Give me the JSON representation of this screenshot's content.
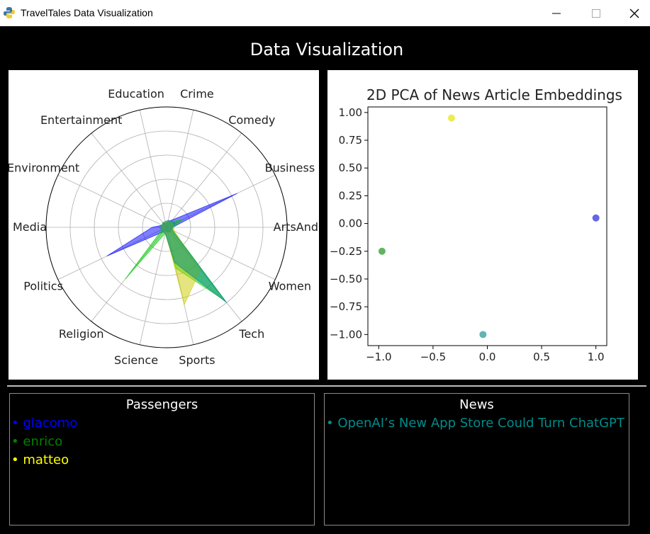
{
  "window": {
    "title": "TravelTales Data Visualization"
  },
  "header": {
    "title": "Data Visualization"
  },
  "chart_data": [
    {
      "type": "radar",
      "categories": [
        "ArtsAndCu",
        "Business",
        "Comedy",
        "Crime",
        "Education",
        "Entertainment",
        "Environment",
        "Media",
        "Politics",
        "Religion",
        "Science",
        "Sports",
        "Tech",
        "Women"
      ],
      "rmax": 1,
      "grid": true,
      "series": [
        {
          "color": "#0000ff",
          "values": [
            0.05,
            0.65,
            0.08,
            0.05,
            0.03,
            0.04,
            0.04,
            0.12,
            0.55,
            0.05,
            0.03,
            0.04,
            0.05,
            0.04
          ]
        },
        {
          "color": "#00cc00",
          "values": [
            0.05,
            0.15,
            0.06,
            0.05,
            0.04,
            0.05,
            0.04,
            0.05,
            0.04,
            0.55,
            0.05,
            0.35,
            0.78,
            0.06
          ]
        },
        {
          "color": "#cccc00",
          "values": [
            0.06,
            0.06,
            0.06,
            0.05,
            0.04,
            0.05,
            0.04,
            0.05,
            0.04,
            0.05,
            0.04,
            0.66,
            0.45,
            0.07
          ]
        },
        {
          "color": "#008b8b",
          "values": [
            0.05,
            0.08,
            0.06,
            0.06,
            0.05,
            0.05,
            0.04,
            0.06,
            0.04,
            0.05,
            0.05,
            0.3,
            0.8,
            0.05
          ]
        }
      ]
    },
    {
      "type": "scatter",
      "title": "2D PCA of News Article Embeddings",
      "xlim": [
        -1.1,
        1.1
      ],
      "ylim": [
        -1.1,
        1.05
      ],
      "xticks": [
        "−1.0",
        "−0.5",
        "0.0",
        "0.5",
        "1.0"
      ],
      "yticks": [
        "1.00",
        "0.75",
        "0.50",
        "0.25",
        "0.00",
        "−0.25",
        "−0.50",
        "−0.75",
        "−1.00"
      ],
      "points": [
        {
          "x": -0.33,
          "y": 0.95,
          "color": "#e6e619"
        },
        {
          "x": 1.0,
          "y": 0.05,
          "color": "#3333dd"
        },
        {
          "x": -0.97,
          "y": -0.25,
          "color": "#2e9b2e"
        },
        {
          "x": -0.04,
          "y": -1.0,
          "color": "#2e9b9b"
        }
      ]
    }
  ],
  "passengers": {
    "header": "Passengers",
    "items": [
      {
        "label": "• giacomo",
        "color": "#0000ff"
      },
      {
        "label": "• enrico",
        "color": "#008000"
      },
      {
        "label": "• matteo",
        "color": "#ffff00"
      }
    ]
  },
  "news": {
    "header": "News",
    "items": [
      {
        "label": "• OpenAI’s New App Store Could Turn ChatGPT",
        "color": "#008b8b"
      }
    ]
  }
}
